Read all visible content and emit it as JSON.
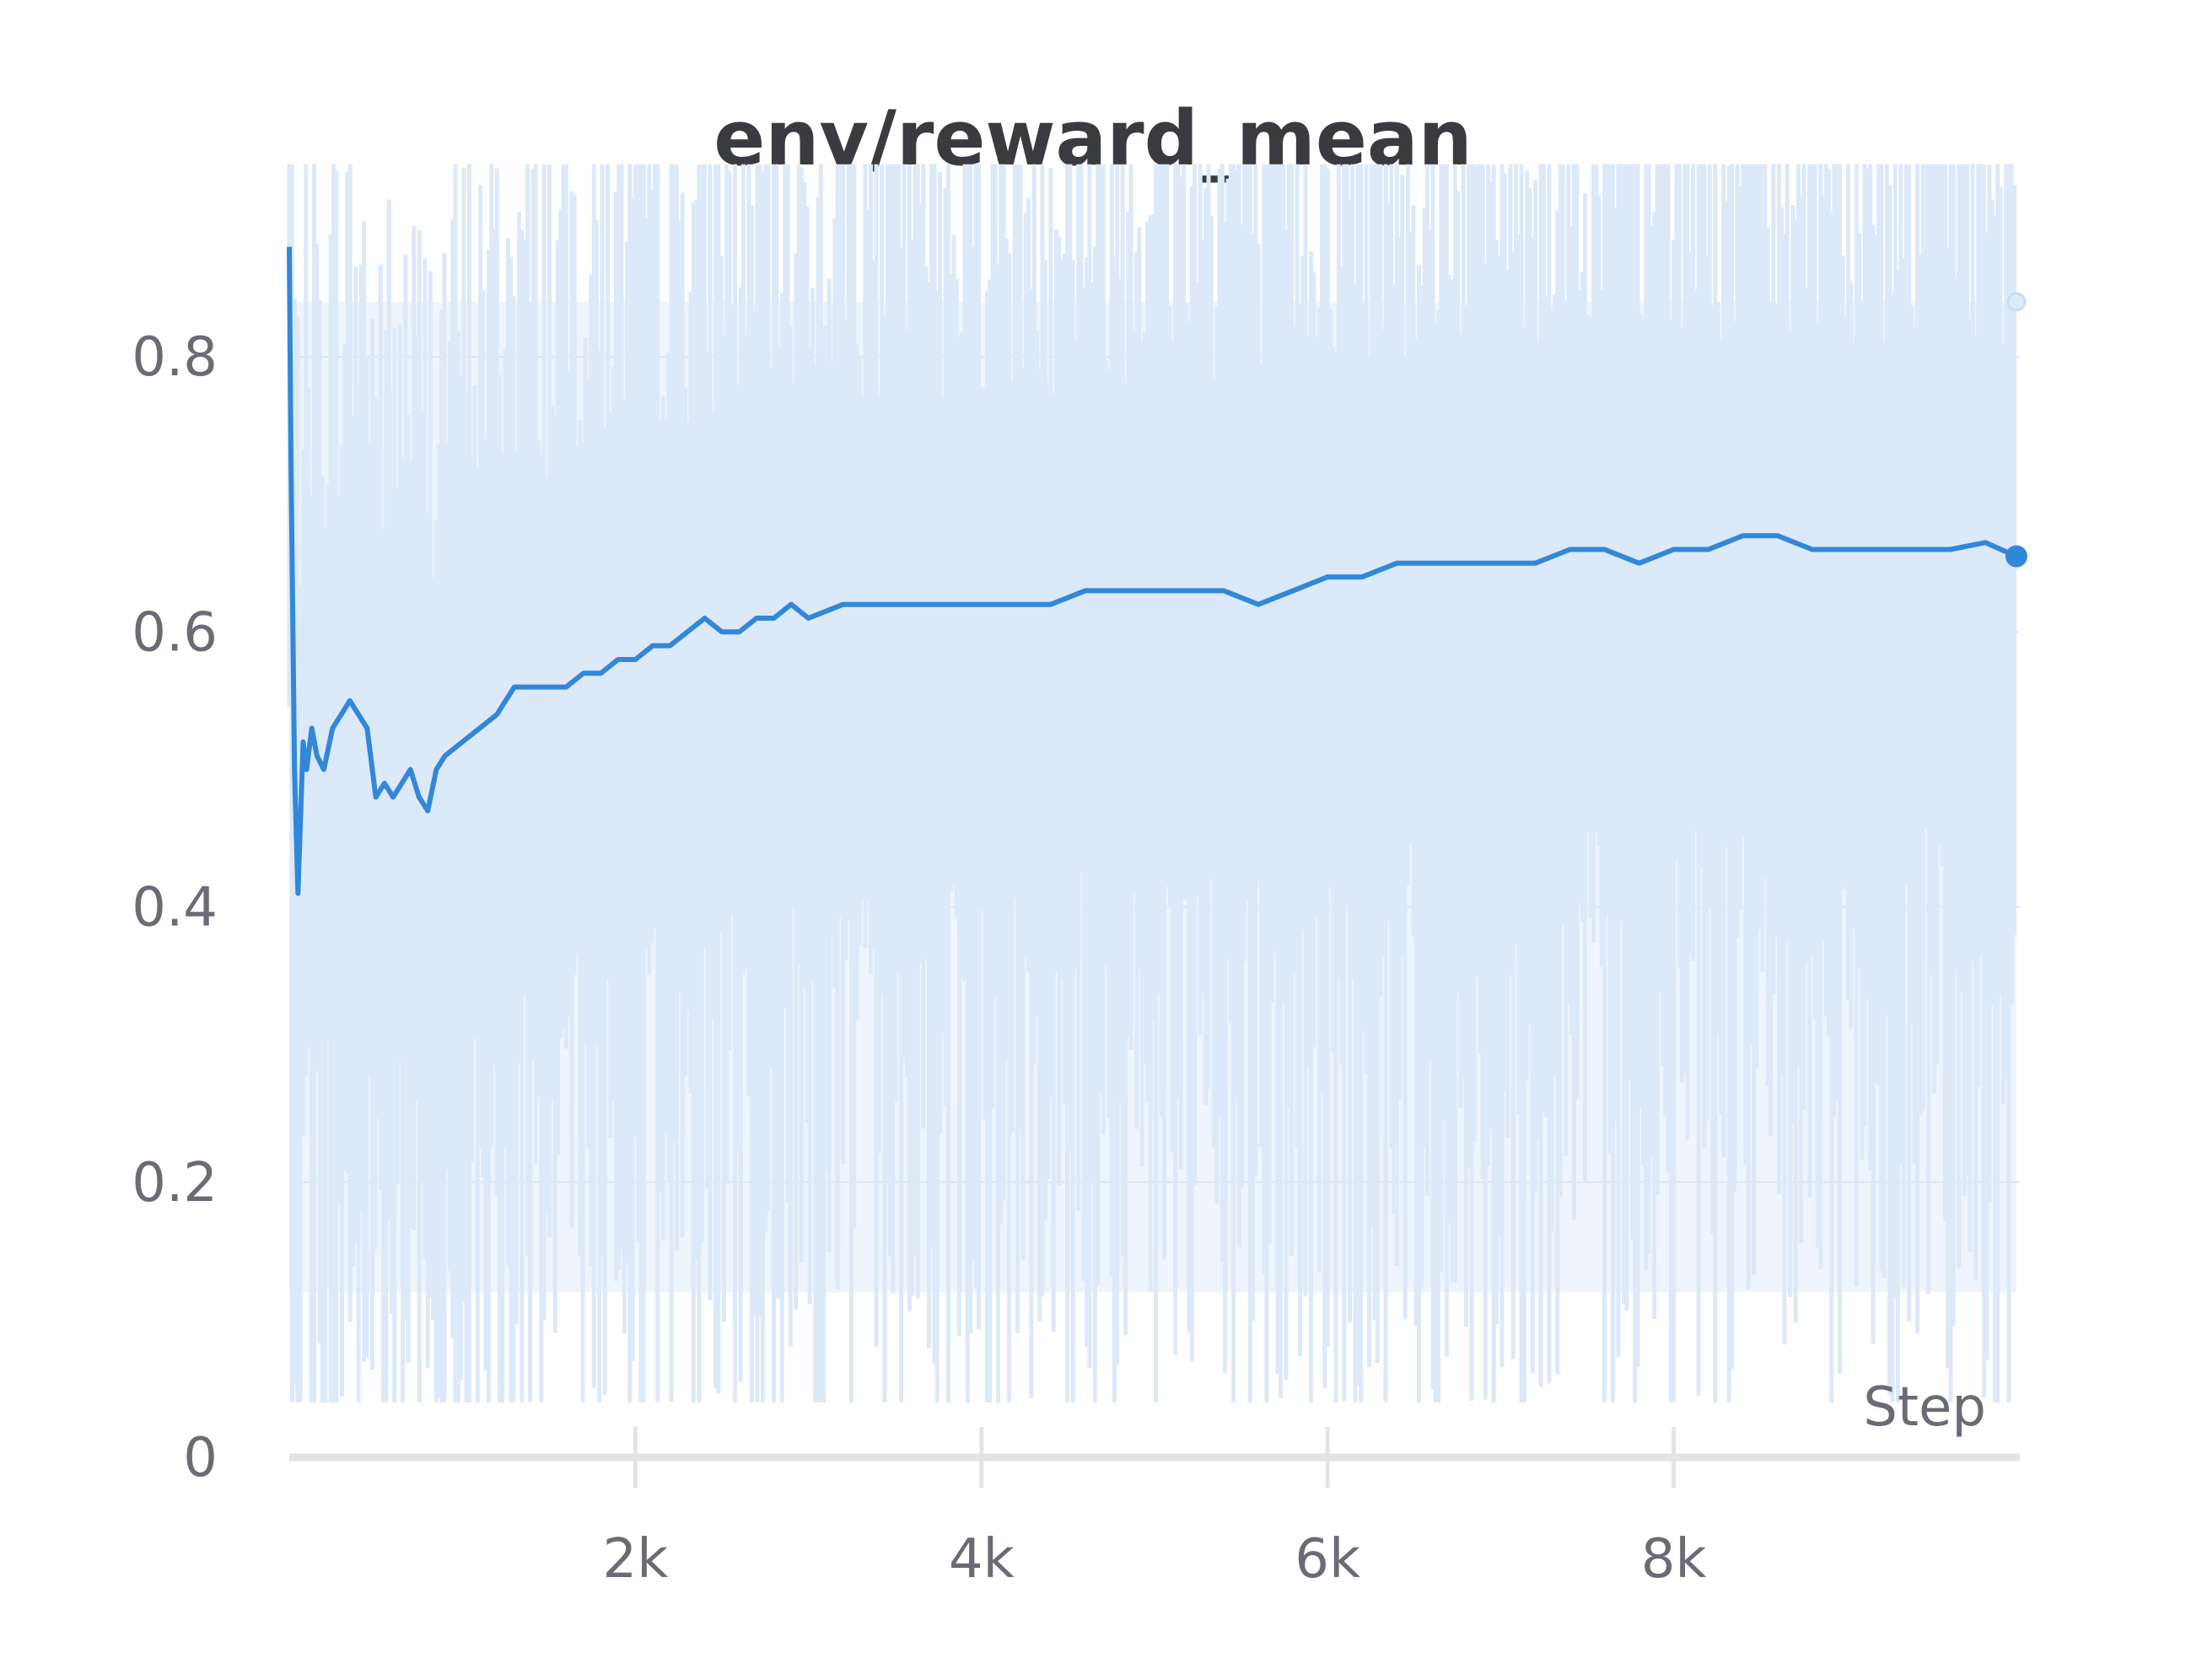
{
  "chart_data": {
    "type": "line",
    "title": "env/reward_mean",
    "xlabel": "Step",
    "ylabel": "",
    "xlim": [
      0,
      10000
    ],
    "ylim": [
      0,
      0.9
    ],
    "x_ticks": [
      {
        "value": 2000,
        "label": "2k"
      },
      {
        "value": 4000,
        "label": "4k"
      },
      {
        "value": 6000,
        "label": "6k"
      },
      {
        "value": 8000,
        "label": "8k"
      }
    ],
    "y_ticks": [
      {
        "value": 0,
        "label": "0"
      },
      {
        "value": 0.2,
        "label": "0.2"
      },
      {
        "value": 0.4,
        "label": "0.4"
      },
      {
        "value": 0.6,
        "label": "0.6"
      },
      {
        "value": 0.8,
        "label": "0.8"
      }
    ],
    "grid": "horizontal",
    "legend": "none",
    "colors": {
      "line": "#3287d9",
      "raw": "#dce9f8",
      "grid": "#dde3ec",
      "axis": "#e4e4e4"
    },
    "series": [
      {
        "kind": "smoothed",
        "x": [
          0,
          10,
          30,
          50,
          80,
          100,
          130,
          160,
          200,
          250,
          300,
          350,
          400,
          450,
          500,
          550,
          600,
          650,
          700,
          750,
          800,
          850,
          900,
          1000,
          1100,
          1200,
          1300,
          1400,
          1500,
          1600,
          1700,
          1800,
          1900,
          2000,
          2100,
          2200,
          2300,
          2400,
          2500,
          2600,
          2700,
          2800,
          2900,
          3000,
          3200,
          3400,
          3600,
          3800,
          4000,
          4200,
          4400,
          4600,
          4800,
          5000,
          5200,
          5400,
          5600,
          5800,
          6000,
          6200,
          6400,
          6600,
          6800,
          7000,
          7200,
          7400,
          7600,
          7800,
          8000,
          8200,
          8400,
          8600,
          8800,
          9000,
          9200,
          9400,
          9600,
          9800,
          9980
        ],
        "y": [
          0.88,
          0.72,
          0.5,
          0.41,
          0.52,
          0.5,
          0.53,
          0.51,
          0.5,
          0.53,
          0.54,
          0.55,
          0.54,
          0.53,
          0.48,
          0.49,
          0.48,
          0.49,
          0.5,
          0.48,
          0.47,
          0.5,
          0.51,
          0.52,
          0.53,
          0.54,
          0.56,
          0.56,
          0.56,
          0.56,
          0.57,
          0.57,
          0.58,
          0.58,
          0.59,
          0.59,
          0.6,
          0.61,
          0.6,
          0.6,
          0.61,
          0.61,
          0.62,
          0.61,
          0.62,
          0.62,
          0.62,
          0.62,
          0.62,
          0.62,
          0.62,
          0.63,
          0.63,
          0.63,
          0.63,
          0.63,
          0.62,
          0.63,
          0.64,
          0.64,
          0.65,
          0.65,
          0.65,
          0.65,
          0.65,
          0.66,
          0.66,
          0.65,
          0.66,
          0.66,
          0.67,
          0.67,
          0.66,
          0.66,
          0.66,
          0.66,
          0.66,
          0.665,
          0.655
        ]
      },
      {
        "kind": "raw",
        "description": "light raw per-step values, oscillating between about 0.05 and 0.95",
        "min": 0.04,
        "max": 0.94,
        "last_x": 9980,
        "last_y": 0.84
      }
    ]
  }
}
